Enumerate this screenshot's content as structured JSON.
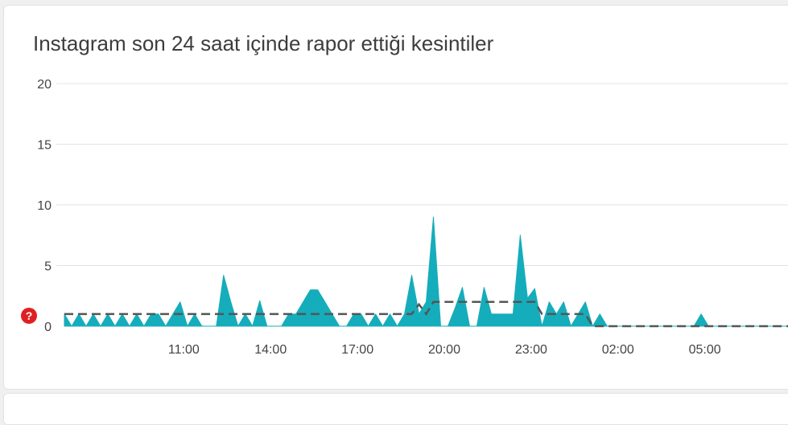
{
  "card": {
    "title": "Instagram son 24 saat içinde rapor ettiği kesintiler"
  },
  "help_icon": {
    "symbol": "?",
    "color": "#e02020"
  },
  "chart_data": {
    "type": "area",
    "title": "Instagram son 24 saat içinde rapor ettiği kesintiler",
    "xlabel": "",
    "ylabel": "",
    "ylim": [
      0,
      20
    ],
    "yticks": [
      0,
      5,
      10,
      15,
      20
    ],
    "xlim": [
      0,
      100
    ],
    "xticks": [
      {
        "x": 16.5,
        "label": "11:00"
      },
      {
        "x": 28.5,
        "label": "14:00"
      },
      {
        "x": 40.5,
        "label": "17:00"
      },
      {
        "x": 52.5,
        "label": "20:00"
      },
      {
        "x": 64.5,
        "label": "23:00"
      },
      {
        "x": 76.5,
        "label": "02:00"
      },
      {
        "x": 88.5,
        "label": "05:00"
      }
    ],
    "grid": true,
    "series": [
      {
        "kind": "area",
        "color": "#15adbb",
        "x": [
          0,
          1,
          2,
          3,
          4,
          5,
          6,
          7,
          8,
          9,
          10,
          11,
          12,
          13,
          14,
          15,
          16,
          17,
          18,
          19,
          20,
          21,
          22,
          23,
          24,
          25,
          26,
          27,
          28,
          29,
          30,
          31,
          32,
          33,
          34,
          35,
          36,
          37,
          38,
          39,
          40,
          41,
          42,
          43,
          44,
          45,
          46,
          47,
          48,
          49,
          50,
          51,
          52,
          53,
          54,
          55,
          56,
          57,
          58,
          59,
          60,
          61,
          62,
          63,
          64,
          65,
          66,
          67,
          68,
          69,
          70,
          71,
          72,
          73,
          74,
          75,
          76,
          77,
          78,
          79,
          80,
          81,
          82,
          83,
          84,
          85,
          86,
          87,
          88,
          89,
          90,
          91,
          92,
          93,
          94,
          95,
          96,
          97,
          98,
          99,
          100
        ],
        "values": [
          1,
          0,
          1,
          0,
          1,
          0,
          1,
          0,
          1,
          0,
          1,
          0,
          1,
          1,
          0,
          1,
          2,
          0,
          1,
          0,
          0,
          0,
          4.2,
          2,
          0,
          1,
          0,
          2.1,
          0,
          0,
          0,
          1,
          1,
          2,
          3,
          3,
          2,
          1,
          0,
          0,
          1,
          1,
          0,
          1,
          0,
          1,
          0,
          1,
          4.2,
          1,
          2,
          9,
          0,
          0,
          1.5,
          3.2,
          0,
          0,
          3.2,
          1,
          1,
          1,
          1,
          7.5,
          2.3,
          3.1,
          0,
          2,
          1,
          2,
          0,
          1,
          2,
          0,
          1,
          0,
          0,
          0,
          0,
          0,
          0,
          0,
          0,
          0,
          0,
          0,
          0,
          0,
          1,
          0,
          0,
          0,
          0,
          0,
          0,
          0,
          0,
          0,
          0,
          0,
          0
        ]
      },
      {
        "kind": "line",
        "style": "dashed",
        "color": "#555555",
        "x": [
          0,
          48,
          49,
          50,
          51,
          65,
          66,
          72,
          73,
          74,
          100
        ],
        "values": [
          1,
          1,
          1.8,
          1,
          2,
          2,
          1,
          1,
          0,
          0,
          0
        ]
      }
    ]
  }
}
